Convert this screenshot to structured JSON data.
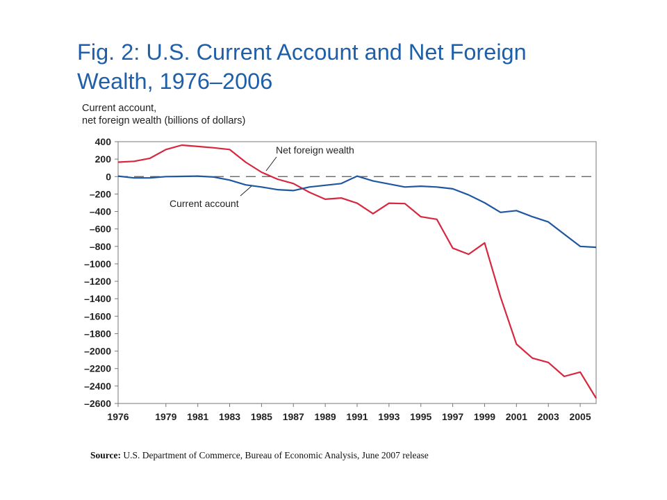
{
  "page": {
    "title_line1": "Fig. 2: U.S. Current Account and Net Foreign",
    "title_line2": "Wealth, 1976–2006",
    "source_label": "Source:",
    "source_text": "U.S. Department of Commerce, Bureau of Economic Analysis, June 2007 release"
  },
  "chart_data": {
    "type": "line",
    "title": "Fig. 2: U.S. Current Account and Net Foreign Wealth, 1976–2006",
    "ylabel_line1": "Current account,",
    "ylabel_line2": "net foreign wealth (billions of dollars)",
    "xlabel": "",
    "xlim": [
      1976,
      2006
    ],
    "ylim": [
      -2600,
      400
    ],
    "yticks": [
      400,
      200,
      0,
      -200,
      -400,
      -600,
      -800,
      -1000,
      -1200,
      -1400,
      -1600,
      -1800,
      -2000,
      -2200,
      -2400,
      -2600
    ],
    "ytick_labels": [
      "400",
      "200",
      "0",
      "–200",
      "–400",
      "–600",
      "–800",
      "–1000",
      "–1200",
      "–1400",
      "–1600",
      "–1800",
      "–2000",
      "–2200",
      "–2400",
      "–2600"
    ],
    "xticks": [
      1976,
      1979,
      1981,
      1983,
      1985,
      1987,
      1989,
      1991,
      1993,
      1995,
      1997,
      1999,
      2001,
      2003,
      2005
    ],
    "xtick_labels": [
      "1976",
      "1979",
      "1981",
      "1983",
      "1985",
      "1987",
      "1989",
      "1991",
      "1993",
      "1995",
      "1997",
      "1999",
      "2001",
      "2003",
      "2005"
    ],
    "zero_line": {
      "value": 0,
      "style": "dashed",
      "color": "#555555"
    },
    "grid": false,
    "series": [
      {
        "name": "Net foreign wealth",
        "color": "#d7263d",
        "x": [
          1976,
          1977,
          1978,
          1979,
          1980,
          1981,
          1982,
          1983,
          1984,
          1985,
          1986,
          1987,
          1988,
          1989,
          1990,
          1991,
          1992,
          1993,
          1994,
          1995,
          1996,
          1997,
          1998,
          1999,
          2000,
          2001,
          2002,
          2003,
          2004,
          2005,
          2006
        ],
        "y": [
          165,
          175,
          210,
          310,
          360,
          345,
          330,
          310,
          165,
          50,
          -30,
          -80,
          -180,
          -260,
          -245,
          -305,
          -425,
          -305,
          -310,
          -460,
          -490,
          -820,
          -890,
          -760,
          -1380,
          -1920,
          -2080,
          -2130,
          -2290,
          -2240,
          -2540
        ]
      },
      {
        "name": "Current account",
        "color": "#1f56a0",
        "x": [
          1976,
          1977,
          1978,
          1979,
          1980,
          1981,
          1982,
          1983,
          1984,
          1985,
          1986,
          1987,
          1988,
          1989,
          1990,
          1991,
          1992,
          1993,
          1994,
          1995,
          1996,
          1997,
          1998,
          1999,
          2000,
          2001,
          2002,
          2003,
          2004,
          2005,
          2006
        ],
        "y": [
          5,
          -15,
          -15,
          0,
          2,
          5,
          -5,
          -40,
          -95,
          -120,
          -150,
          -160,
          -120,
          -100,
          -80,
          5,
          -50,
          -85,
          -120,
          -110,
          -120,
          -140,
          -210,
          -300,
          -410,
          -390,
          -460,
          -520,
          -660,
          -800,
          -810
        ]
      }
    ],
    "annotations": [
      {
        "text": "Net foreign wealth",
        "series": "Net foreign wealth"
      },
      {
        "text": "Current account",
        "series": "Current account"
      }
    ]
  }
}
